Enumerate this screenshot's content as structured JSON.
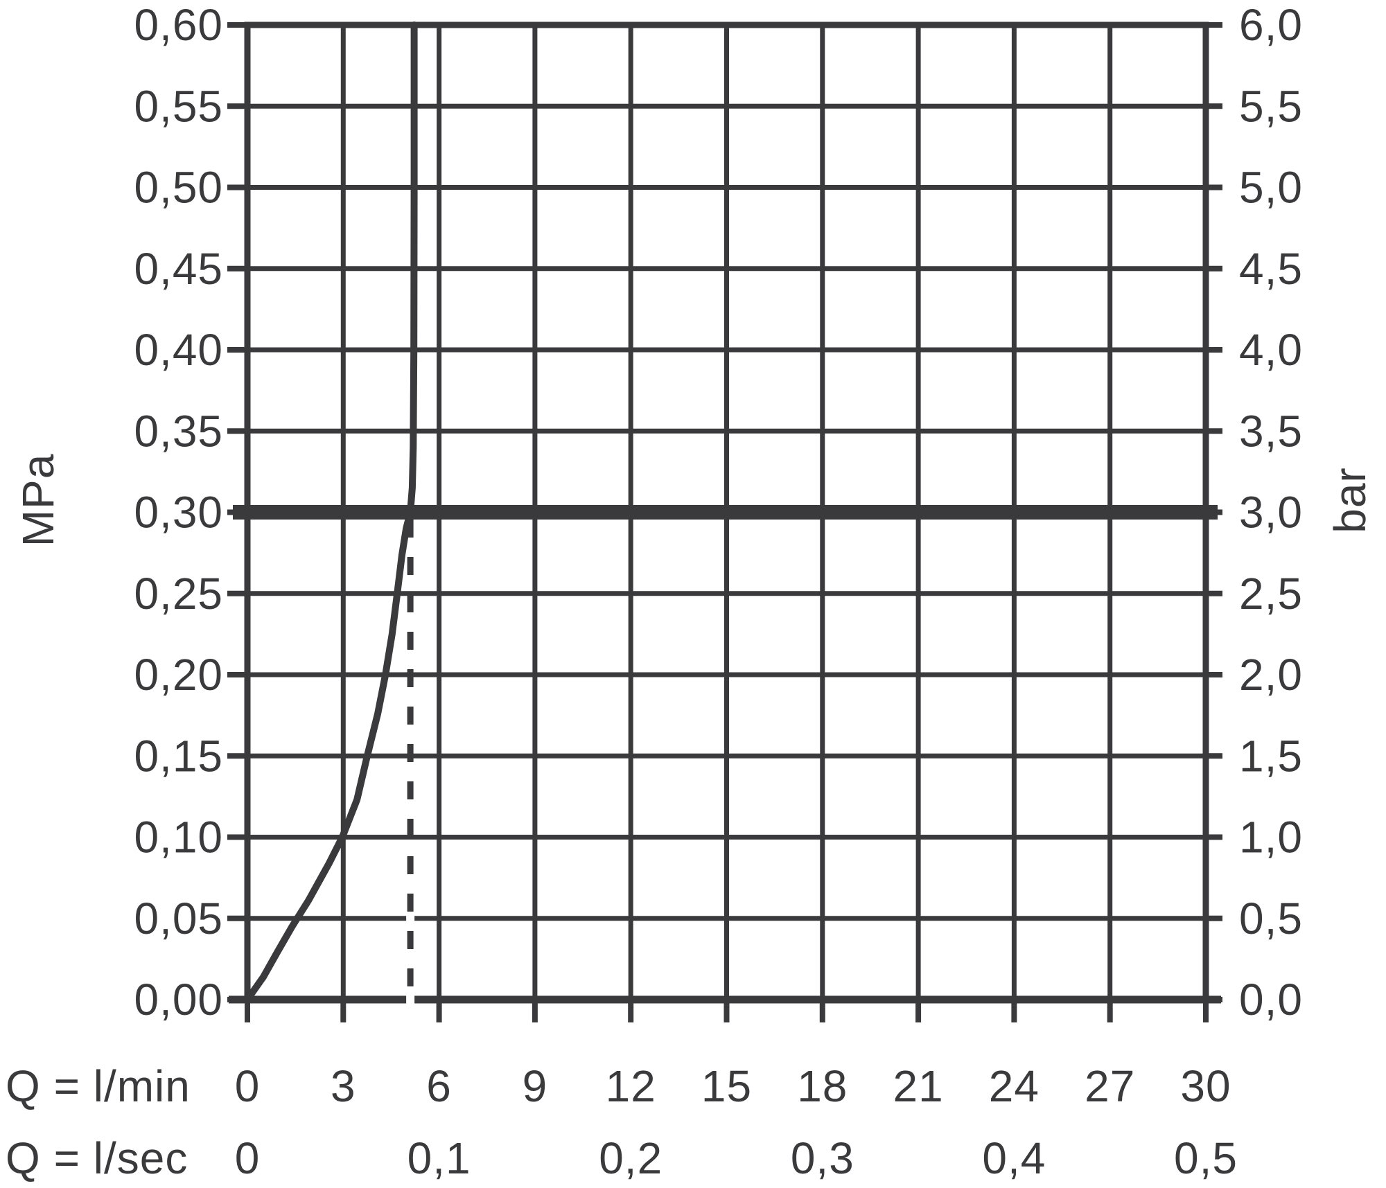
{
  "theme": {
    "ink": "#3a3a3c",
    "background": "#ffffff"
  },
  "chart_data": {
    "type": "line",
    "description": "Pressure vs. flow-rate diagram with flow-limited curve, bold reference line at 0,30 MPa / 3,0 bar and dashed marker at the resulting flow rate",
    "grid": {
      "grid_on": true,
      "x_step_lmin": 3,
      "y_step_mpa": 0.05
    },
    "y_axis_left": {
      "unit": "MPa",
      "range_mpa": [
        0,
        0.6
      ],
      "tick_labels": [
        "0,60",
        "0,55",
        "0,50",
        "0,45",
        "0,40",
        "0,35",
        "0,30",
        "0,25",
        "0,20",
        "0,15",
        "0,10",
        "0,05",
        "0,00"
      ]
    },
    "y_axis_right": {
      "unit": "bar",
      "range_bar": [
        0,
        6
      ],
      "tick_labels": [
        "6,0",
        "5,5",
        "5,0",
        "4,5",
        "4,0",
        "3,5",
        "3,0",
        "2,5",
        "2,0",
        "1,5",
        "1,0",
        "0,5",
        "0,0"
      ]
    },
    "x_axis_lmin": {
      "row_label": "Q = l/min",
      "range_lmin": [
        0,
        30
      ],
      "tick_values": [
        0,
        3,
        6,
        9,
        12,
        15,
        18,
        21,
        24,
        27,
        30
      ],
      "tick_labels": [
        "0",
        "3",
        "6",
        "9",
        "12",
        "15",
        "18",
        "21",
        "24",
        "27",
        "30"
      ]
    },
    "x_axis_lsec": {
      "row_label": "Q = l/sec",
      "tick_values_lmin": [
        0,
        6,
        12,
        18,
        24,
        30
      ],
      "tick_labels": [
        "0",
        "0,1",
        "0,2",
        "0,3",
        "0,4",
        "0,5"
      ]
    },
    "series": [
      {
        "name": "flow-curve",
        "kind": "curve",
        "points_q_lmin_p_mpa": [
          [
            0,
            0
          ],
          [
            0.5,
            0.014
          ],
          [
            0.93,
            0.029
          ],
          [
            1.4,
            0.045
          ],
          [
            1.91,
            0.061
          ],
          [
            2.56,
            0.084
          ],
          [
            2.97,
            0.1
          ],
          [
            3.43,
            0.123
          ],
          [
            3.75,
            0.15
          ],
          [
            4.08,
            0.176
          ],
          [
            4.32,
            0.2
          ],
          [
            4.53,
            0.225
          ],
          [
            4.69,
            0.25
          ],
          [
            4.84,
            0.274
          ],
          [
            4.97,
            0.29
          ],
          [
            5.1,
            0.3
          ],
          [
            5.16,
            0.315
          ],
          [
            5.19,
            0.34
          ],
          [
            5.21,
            0.4
          ],
          [
            5.22,
            0.5
          ],
          [
            5.22,
            0.6
          ]
        ]
      },
      {
        "name": "operating-pressure-line",
        "kind": "horizontal-bold-line",
        "p_mpa": 0.3,
        "p_bar": 3.0
      },
      {
        "name": "flow-at-3bar-marker",
        "kind": "vertical-dashed-line",
        "q_lmin": 5.1,
        "p_from_mpa": 0,
        "p_to_mpa": 0.295
      }
    ]
  }
}
